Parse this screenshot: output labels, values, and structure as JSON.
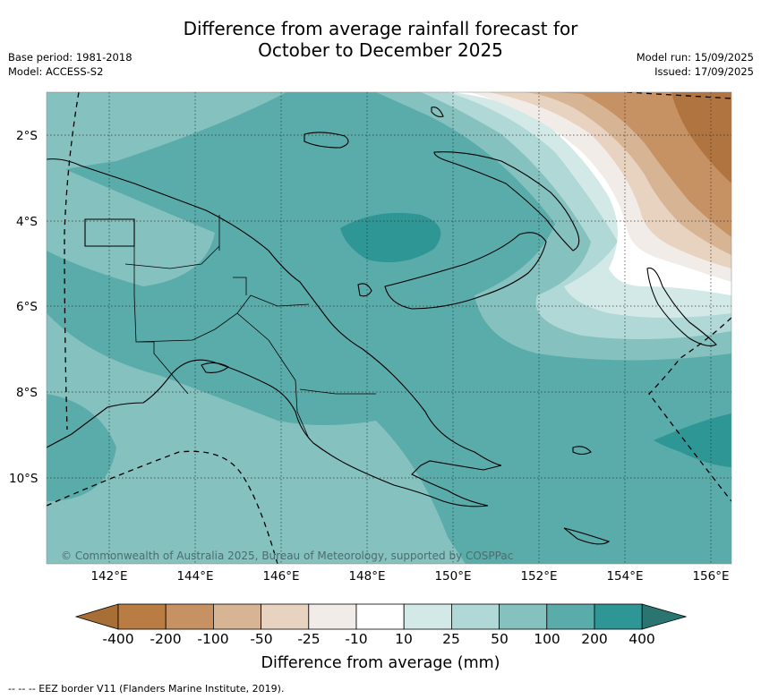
{
  "title_line1": "Difference from average rainfall forecast for",
  "title_line2": "October to December 2025",
  "base_period": "Base period: 1981-2018",
  "model": "Model: ACCESS-S2",
  "model_run": "Model run: 15/09/2025",
  "issued": "Issued: 17/09/2025",
  "copyright": "© Commonwealth of Australia 2025, Bureau of Meteorology, supported by COSPPac",
  "lat_ticks": [
    "2°S",
    "4°S",
    "6°S",
    "8°S",
    "10°S"
  ],
  "lon_ticks": [
    "142°E",
    "144°E",
    "146°E",
    "148°E",
    "150°E",
    "152°E",
    "154°E",
    "156°E"
  ],
  "colorbar": {
    "labels": [
      "-400",
      "-200",
      "-100",
      "-50",
      "-25",
      "-10",
      "10",
      "25",
      "50",
      "100",
      "200",
      "400"
    ],
    "colors": [
      "#a76f36",
      "#b97c43",
      "#c69264",
      "#d6b494",
      "#e8d2c0",
      "#f2ece8",
      "#ffffff",
      "#d3e9e8",
      "#afd8d6",
      "#84c1bf",
      "#5aacab",
      "#2e9795",
      "#2a7572"
    ],
    "title": "Difference from average (mm)"
  },
  "footnote": "-- -- -- EEZ border V11 (Flanders Marine Institute, 2019)."
}
